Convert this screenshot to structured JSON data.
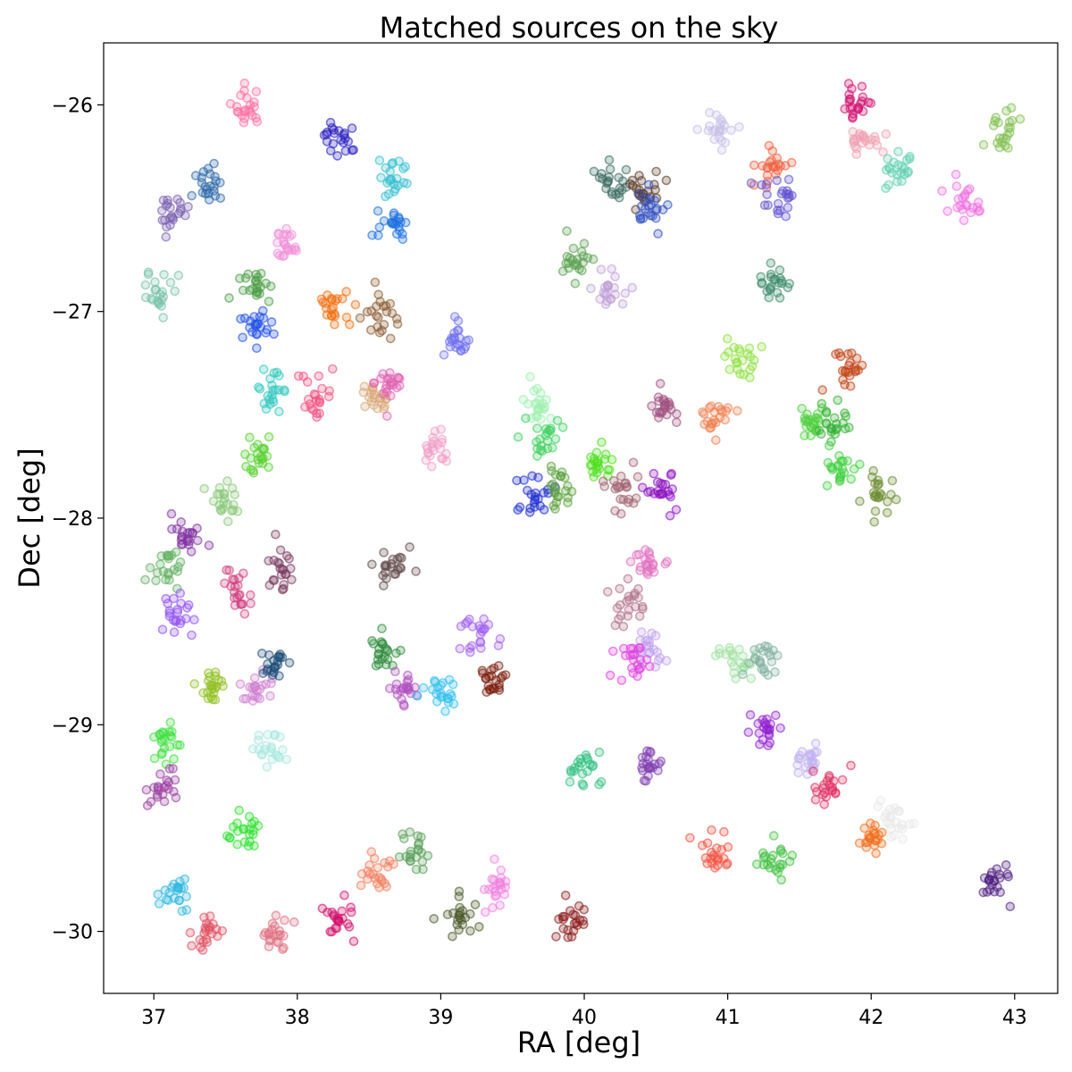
{
  "chart_data": {
    "type": "scatter",
    "title": "Matched sources on the sky",
    "xlabel": "RA [deg]",
    "ylabel": "Dec [deg]",
    "xlim": [
      36.65,
      43.3
    ],
    "ylim": [
      -30.3,
      -25.7
    ],
    "xticks": [
      37,
      38,
      39,
      40,
      41,
      42,
      43
    ],
    "yticks": [
      -26,
      -27,
      -28,
      -29,
      -30
    ],
    "xtick_labels": [
      "37",
      "38",
      "39",
      "40",
      "41",
      "42",
      "43"
    ],
    "ytick_labels": [
      "−26",
      "−27",
      "−28",
      "−29",
      "−30"
    ],
    "grid": false,
    "legend": "none",
    "marker": "open circle with filled center, semi-transparent",
    "clusters": [
      {
        "ra": 37.65,
        "dec": -26.02,
        "color": "#ff6fa0"
      },
      {
        "ra": 38.3,
        "dec": -26.15,
        "color": "#2a1fbf"
      },
      {
        "ra": 37.38,
        "dec": -26.38,
        "color": "#2b68a8"
      },
      {
        "ra": 37.12,
        "dec": -26.52,
        "color": "#7a5fb0"
      },
      {
        "ra": 38.68,
        "dec": -26.34,
        "color": "#36c0cf"
      },
      {
        "ra": 38.65,
        "dec": -26.58,
        "color": "#1a6fe0"
      },
      {
        "ra": 37.92,
        "dec": -26.68,
        "color": "#f08fd8"
      },
      {
        "ra": 37.72,
        "dec": -26.88,
        "color": "#4a9c45"
      },
      {
        "ra": 37.02,
        "dec": -26.92,
        "color": "#76c2a8"
      },
      {
        "ra": 37.72,
        "dec": -27.07,
        "color": "#1f4fe8"
      },
      {
        "ra": 38.25,
        "dec": -26.98,
        "color": "#f07010"
      },
      {
        "ra": 38.6,
        "dec": -27.02,
        "color": "#8a5a30"
      },
      {
        "ra": 39.12,
        "dec": -27.15,
        "color": "#7070f0"
      },
      {
        "ra": 37.82,
        "dec": -27.38,
        "color": "#30c8c0"
      },
      {
        "ra": 38.12,
        "dec": -27.4,
        "color": "#f05080"
      },
      {
        "ra": 38.55,
        "dec": -27.42,
        "color": "#d8a878"
      },
      {
        "ra": 38.65,
        "dec": -27.35,
        "color": "#e060b0"
      },
      {
        "ra": 38.95,
        "dec": -27.65,
        "color": "#f0a0c8"
      },
      {
        "ra": 37.72,
        "dec": -27.68,
        "color": "#58d030"
      },
      {
        "ra": 37.5,
        "dec": -27.9,
        "color": "#88c878"
      },
      {
        "ra": 37.25,
        "dec": -28.1,
        "color": "#8030a0"
      },
      {
        "ra": 37.1,
        "dec": -28.25,
        "color": "#60b060"
      },
      {
        "ra": 37.6,
        "dec": -28.35,
        "color": "#d04080"
      },
      {
        "ra": 37.88,
        "dec": -28.27,
        "color": "#7a3a60"
      },
      {
        "ra": 38.65,
        "dec": -28.22,
        "color": "#604848"
      },
      {
        "ra": 37.15,
        "dec": -28.47,
        "color": "#9050f0"
      },
      {
        "ra": 37.4,
        "dec": -28.8,
        "color": "#90c020"
      },
      {
        "ra": 37.72,
        "dec": -28.82,
        "color": "#d080d0"
      },
      {
        "ra": 37.85,
        "dec": -28.7,
        "color": "#204e78"
      },
      {
        "ra": 38.6,
        "dec": -28.67,
        "color": "#2c8a3a"
      },
      {
        "ra": 38.75,
        "dec": -28.82,
        "color": "#b050c0"
      },
      {
        "ra": 39.0,
        "dec": -28.85,
        "color": "#30c0f0"
      },
      {
        "ra": 39.28,
        "dec": -28.58,
        "color": "#a060f0"
      },
      {
        "ra": 39.35,
        "dec": -28.78,
        "color": "#7a1a0a"
      },
      {
        "ra": 37.05,
        "dec": -29.08,
        "color": "#40e040"
      },
      {
        "ra": 37.05,
        "dec": -29.3,
        "color": "#9a40a0"
      },
      {
        "ra": 37.8,
        "dec": -29.12,
        "color": "#a8e8e0"
      },
      {
        "ra": 37.62,
        "dec": -29.52,
        "color": "#30e030"
      },
      {
        "ra": 37.15,
        "dec": -29.8,
        "color": "#30b8e0"
      },
      {
        "ra": 37.38,
        "dec": -30.0,
        "color": "#e05060"
      },
      {
        "ra": 37.85,
        "dec": -30.0,
        "color": "#e07080"
      },
      {
        "ra": 38.3,
        "dec": -29.95,
        "color": "#d0106a"
      },
      {
        "ra": 38.55,
        "dec": -29.72,
        "color": "#f08060"
      },
      {
        "ra": 38.82,
        "dec": -29.62,
        "color": "#5aa05a"
      },
      {
        "ra": 39.12,
        "dec": -29.92,
        "color": "#4a5a2a"
      },
      {
        "ra": 39.4,
        "dec": -29.8,
        "color": "#f080e0"
      },
      {
        "ra": 39.9,
        "dec": -29.95,
        "color": "#8a1a1a"
      },
      {
        "ra": 39.7,
        "dec": -27.45,
        "color": "#a0f0b0"
      },
      {
        "ra": 39.75,
        "dec": -27.6,
        "color": "#40d060"
      },
      {
        "ra": 39.65,
        "dec": -27.9,
        "color": "#1a2ad0"
      },
      {
        "ra": 39.82,
        "dec": -27.85,
        "color": "#5aa03a"
      },
      {
        "ra": 39.95,
        "dec": -26.75,
        "color": "#5aa050"
      },
      {
        "ra": 40.18,
        "dec": -26.9,
        "color": "#c0a0d8"
      },
      {
        "ra": 40.18,
        "dec": -26.38,
        "color": "#3a6a60"
      },
      {
        "ra": 40.42,
        "dec": -26.4,
        "color": "#5a3a28"
      },
      {
        "ra": 40.45,
        "dec": -26.5,
        "color": "#3050c0"
      },
      {
        "ra": 40.1,
        "dec": -27.75,
        "color": "#50e020"
      },
      {
        "ra": 40.28,
        "dec": -27.85,
        "color": "#a06070"
      },
      {
        "ra": 40.55,
        "dec": -27.85,
        "color": "#8a10c0"
      },
      {
        "ra": 40.55,
        "dec": -27.45,
        "color": "#a05080"
      },
      {
        "ra": 40.9,
        "dec": -27.5,
        "color": "#f08050"
      },
      {
        "ra": 40.45,
        "dec": -28.22,
        "color": "#e070c0"
      },
      {
        "ra": 40.3,
        "dec": -28.4,
        "color": "#b07088"
      },
      {
        "ra": 40.45,
        "dec": -28.65,
        "color": "#c0a0f0"
      },
      {
        "ra": 40.35,
        "dec": -28.7,
        "color": "#e040e0"
      },
      {
        "ra": 40.0,
        "dec": -29.22,
        "color": "#30c080"
      },
      {
        "ra": 40.45,
        "dec": -29.2,
        "color": "#8040b0"
      },
      {
        "ra": 40.88,
        "dec": -29.62,
        "color": "#f05040"
      },
      {
        "ra": 40.92,
        "dec": -26.12,
        "color": "#c8c0e8"
      },
      {
        "ra": 41.08,
        "dec": -27.22,
        "color": "#90e040"
      },
      {
        "ra": 41.05,
        "dec": -28.68,
        "color": "#a0e0a0"
      },
      {
        "ra": 41.25,
        "dec": -28.68,
        "color": "#80b0a0"
      },
      {
        "ra": 41.25,
        "dec": -29.02,
        "color": "#9020d0"
      },
      {
        "ra": 41.32,
        "dec": -26.3,
        "color": "#f06040"
      },
      {
        "ra": 41.35,
        "dec": -26.45,
        "color": "#6050d0"
      },
      {
        "ra": 41.32,
        "dec": -26.88,
        "color": "#3a8a6a"
      },
      {
        "ra": 41.35,
        "dec": -29.65,
        "color": "#40c040"
      },
      {
        "ra": 41.55,
        "dec": -29.18,
        "color": "#c0b0f0"
      },
      {
        "ra": 41.58,
        "dec": -27.55,
        "color": "#50d040"
      },
      {
        "ra": 41.75,
        "dec": -27.55,
        "color": "#30b030"
      },
      {
        "ra": 41.8,
        "dec": -27.75,
        "color": "#40d040"
      },
      {
        "ra": 41.7,
        "dec": -29.3,
        "color": "#e03060"
      },
      {
        "ra": 41.85,
        "dec": -27.28,
        "color": "#c04010"
      },
      {
        "ra": 41.9,
        "dec": -26.0,
        "color": "#d01070"
      },
      {
        "ra": 41.95,
        "dec": -26.18,
        "color": "#f0a0b0"
      },
      {
        "ra": 42.05,
        "dec": -27.9,
        "color": "#6a8a30"
      },
      {
        "ra": 42.18,
        "dec": -26.3,
        "color": "#60d0b0"
      },
      {
        "ra": 42.0,
        "dec": -29.55,
        "color": "#f07020"
      },
      {
        "ra": 42.15,
        "dec": -29.48,
        "color": "#e8e8e8"
      },
      {
        "ra": 42.65,
        "dec": -26.48,
        "color": "#f070e0"
      },
      {
        "ra": 42.92,
        "dec": -26.12,
        "color": "#80c050"
      },
      {
        "ra": 42.88,
        "dec": -29.75,
        "color": "#502080"
      }
    ]
  }
}
